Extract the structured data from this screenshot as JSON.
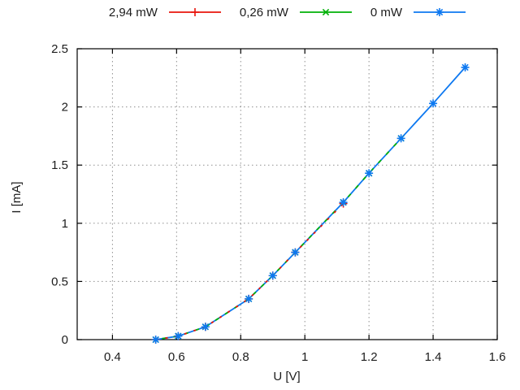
{
  "chart_data": {
    "type": "line",
    "title": "",
    "xlabel": "U [V]",
    "ylabel": "I [mA]",
    "xlim": [
      0.29,
      1.6
    ],
    "ylim": [
      0,
      2.5
    ],
    "grid": true,
    "legend_position": "top-outside-horizontal",
    "xticks": [
      {
        "v": 0.4,
        "label": "0.4"
      },
      {
        "v": 0.6,
        "label": "0.6"
      },
      {
        "v": 0.8,
        "label": "0.8"
      },
      {
        "v": 1.0,
        "label": "1"
      },
      {
        "v": 1.2,
        "label": "1.2"
      },
      {
        "v": 1.4,
        "label": "1.4"
      },
      {
        "v": 1.6,
        "label": "1.6"
      }
    ],
    "yticks": [
      {
        "v": 0,
        "label": "0"
      },
      {
        "v": 0.5,
        "label": "0.5"
      },
      {
        "v": 1.0,
        "label": "1"
      },
      {
        "v": 1.5,
        "label": "1.5"
      },
      {
        "v": 2.0,
        "label": "2"
      },
      {
        "v": 2.5,
        "label": "2.5"
      }
    ],
    "colors": {
      "background": "#ffffff",
      "border": "#000000",
      "grid": "#8f8f8f",
      "text": "#1c1c1c"
    },
    "series": [
      {
        "name": "2,94 mW",
        "color": "#e8140c",
        "marker": "plus",
        "points": [
          [
            0.535,
            0.0
          ],
          [
            0.605,
            0.03
          ],
          [
            0.69,
            0.11
          ],
          [
            0.825,
            0.35
          ],
          [
            0.9,
            0.55
          ],
          [
            0.97,
            0.75
          ],
          [
            1.12,
            1.17
          ]
        ]
      },
      {
        "name": "0,26 mW",
        "color": "#00b006",
        "marker": "cross",
        "points": [
          [
            0.535,
            0.0
          ],
          [
            0.605,
            0.03
          ],
          [
            0.69,
            0.11
          ],
          [
            0.825,
            0.35
          ],
          [
            0.9,
            0.55
          ],
          [
            0.97,
            0.75
          ],
          [
            1.12,
            1.18
          ],
          [
            1.2,
            1.43
          ],
          [
            1.3,
            1.73
          ]
        ]
      },
      {
        "name": "0 mW",
        "color": "#0d78f0",
        "marker": "asterisk",
        "points": [
          [
            0.535,
            0.0
          ],
          [
            0.605,
            0.03
          ],
          [
            0.69,
            0.11
          ],
          [
            0.825,
            0.35
          ],
          [
            0.9,
            0.55
          ],
          [
            0.97,
            0.75
          ],
          [
            1.12,
            1.18
          ],
          [
            1.2,
            1.43
          ],
          [
            1.3,
            1.73
          ],
          [
            1.4,
            2.03
          ],
          [
            1.5,
            2.34
          ]
        ]
      }
    ]
  }
}
